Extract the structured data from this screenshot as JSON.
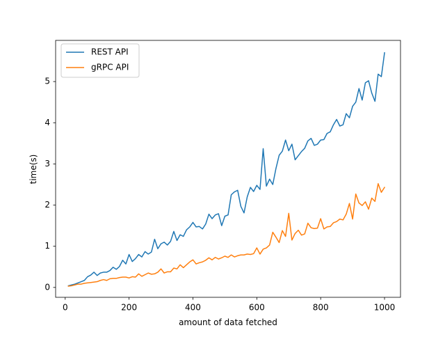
{
  "chart_data": {
    "type": "line",
    "title": "",
    "xlabel": "amount of data fetched",
    "ylabel": "time(s)",
    "xlim": [
      -30,
      1050
    ],
    "ylim": [
      -0.24,
      6.0
    ],
    "xticks": [
      0,
      200,
      400,
      600,
      800,
      1000
    ],
    "yticks": [
      0,
      1,
      2,
      3,
      4,
      5
    ],
    "x_tick_labels": [
      "0",
      "200",
      "400",
      "600",
      "800",
      "1000"
    ],
    "y_tick_labels": [
      "0",
      "1",
      "2",
      "3",
      "4",
      "5"
    ],
    "grid": false,
    "legend_position": "top-left",
    "x": [
      10,
      20,
      30,
      40,
      50,
      60,
      70,
      80,
      90,
      100,
      110,
      120,
      130,
      140,
      150,
      160,
      170,
      180,
      190,
      200,
      210,
      220,
      230,
      240,
      250,
      260,
      270,
      280,
      290,
      300,
      310,
      320,
      330,
      340,
      350,
      360,
      370,
      380,
      390,
      400,
      410,
      420,
      430,
      440,
      450,
      460,
      470,
      480,
      490,
      500,
      510,
      520,
      530,
      540,
      550,
      560,
      570,
      580,
      590,
      600,
      610,
      620,
      630,
      640,
      650,
      660,
      670,
      680,
      690,
      700,
      710,
      720,
      730,
      740,
      750,
      760,
      770,
      780,
      790,
      800,
      810,
      820,
      830,
      840,
      850,
      860,
      870,
      880,
      890,
      900,
      910,
      920,
      930,
      940,
      950,
      960,
      970,
      980,
      990,
      1000
    ],
    "series": [
      {
        "name": "REST API",
        "color": "#1f77b4",
        "values": [
          0.04,
          0.06,
          0.08,
          0.11,
          0.14,
          0.17,
          0.26,
          0.3,
          0.37,
          0.29,
          0.35,
          0.37,
          0.37,
          0.41,
          0.49,
          0.44,
          0.51,
          0.66,
          0.57,
          0.8,
          0.63,
          0.7,
          0.8,
          0.74,
          0.87,
          0.81,
          0.86,
          1.17,
          0.94,
          1.06,
          1.1,
          1.03,
          1.12,
          1.36,
          1.14,
          1.28,
          1.24,
          1.4,
          1.47,
          1.58,
          1.47,
          1.48,
          1.42,
          1.54,
          1.78,
          1.67,
          1.76,
          1.79,
          1.5,
          1.73,
          1.76,
          2.25,
          2.32,
          2.36,
          1.97,
          1.81,
          2.2,
          2.43,
          2.33,
          2.48,
          2.38,
          3.37,
          2.46,
          2.63,
          2.5,
          2.89,
          3.21,
          3.31,
          3.58,
          3.32,
          3.48,
          3.1,
          3.2,
          3.3,
          3.38,
          3.56,
          3.62,
          3.45,
          3.48,
          3.58,
          3.59,
          3.74,
          3.78,
          3.95,
          4.08,
          3.92,
          3.95,
          4.22,
          4.12,
          4.4,
          4.5,
          4.83,
          4.55,
          4.97,
          5.02,
          4.72,
          4.52,
          5.18,
          5.12,
          5.7
        ]
      },
      {
        "name": "gRPC API",
        "color": "#ff7f0e",
        "values": [
          0.03,
          0.04,
          0.06,
          0.08,
          0.08,
          0.1,
          0.11,
          0.12,
          0.13,
          0.14,
          0.17,
          0.19,
          0.17,
          0.21,
          0.22,
          0.22,
          0.24,
          0.25,
          0.25,
          0.23,
          0.26,
          0.25,
          0.33,
          0.27,
          0.31,
          0.35,
          0.32,
          0.33,
          0.37,
          0.45,
          0.35,
          0.38,
          0.38,
          0.47,
          0.45,
          0.55,
          0.48,
          0.55,
          0.62,
          0.67,
          0.57,
          0.6,
          0.62,
          0.66,
          0.72,
          0.67,
          0.73,
          0.69,
          0.72,
          0.76,
          0.73,
          0.79,
          0.74,
          0.77,
          0.79,
          0.79,
          0.81,
          0.8,
          0.82,
          0.96,
          0.81,
          0.93,
          0.96,
          1.03,
          1.34,
          1.22,
          1.09,
          1.38,
          1.24,
          1.8,
          1.15,
          1.31,
          1.39,
          1.27,
          1.3,
          1.56,
          1.45,
          1.43,
          1.44,
          1.67,
          1.42,
          1.47,
          1.48,
          1.57,
          1.6,
          1.66,
          1.64,
          1.78,
          2.04,
          1.66,
          2.27,
          2.05,
          1.99,
          2.08,
          1.9,
          2.17,
          2.09,
          2.52,
          2.31,
          2.43
        ]
      }
    ]
  }
}
